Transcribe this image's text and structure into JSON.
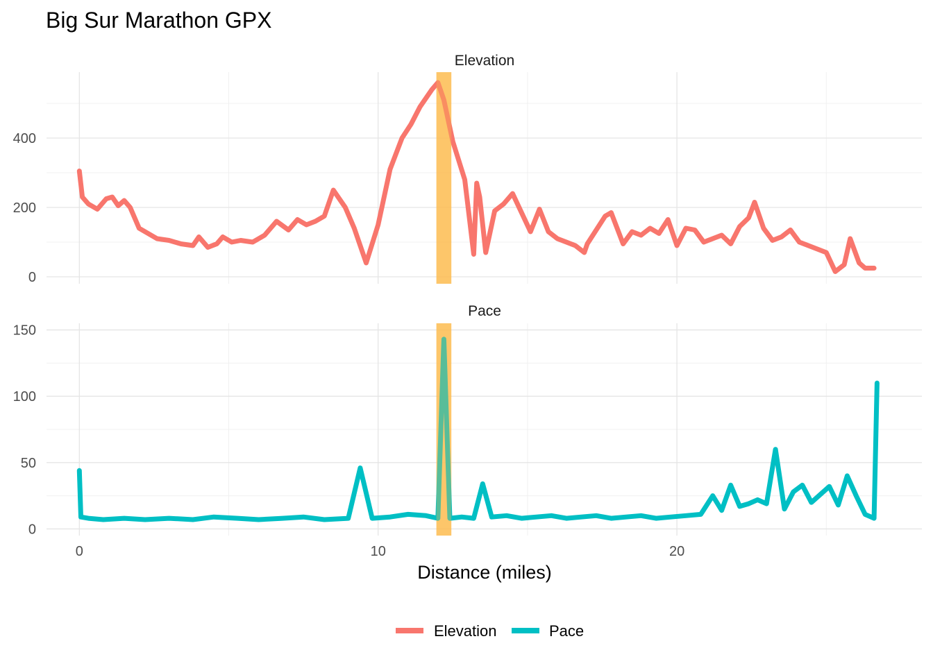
{
  "chart_data": {
    "type": "line",
    "title": "Big Sur Marathon GPX",
    "xlabel": "Distance (miles)",
    "ylabel": "",
    "xlim": [
      -1.1,
      28.2
    ],
    "x_ticks": [
      0,
      10,
      20
    ],
    "grid": true,
    "legend_position": "bottom",
    "highlight_band": {
      "x_start": 11.95,
      "x_end": 12.45,
      "color": "#FDB94A"
    },
    "panels": [
      {
        "name": "Elevation",
        "ylim": [
          -20,
          590
        ],
        "y_ticks": [
          0,
          200,
          400
        ],
        "color": "#F8766D",
        "x": [
          0,
          0.1,
          0.3,
          0.6,
          0.9,
          1.1,
          1.3,
          1.5,
          1.7,
          2.0,
          2.3,
          2.6,
          3.0,
          3.4,
          3.8,
          4.0,
          4.3,
          4.6,
          4.8,
          5.1,
          5.4,
          5.8,
          6.2,
          6.6,
          7.0,
          7.3,
          7.6,
          7.9,
          8.2,
          8.5,
          8.9,
          9.2,
          9.6,
          10.0,
          10.4,
          10.8,
          11.1,
          11.4,
          11.8,
          12.0,
          12.2,
          12.5,
          12.9,
          13.2,
          13.3,
          13.4,
          13.6,
          13.8,
          13.9,
          14.2,
          14.5,
          14.8,
          15.1,
          15.4,
          15.7,
          16.0,
          16.3,
          16.6,
          16.9,
          17.0,
          17.3,
          17.6,
          17.8,
          18.0,
          18.2,
          18.5,
          18.8,
          19.1,
          19.4,
          19.7,
          20.0,
          20.3,
          20.6,
          20.9,
          21.2,
          21.5,
          21.8,
          22.1,
          22.4,
          22.6,
          22.9,
          23.2,
          23.5,
          23.8,
          24.1,
          24.4,
          24.7,
          25.0,
          25.3,
          25.6,
          25.8,
          26.1,
          26.3,
          26.6
        ],
        "y": [
          305,
          230,
          210,
          195,
          225,
          230,
          205,
          220,
          200,
          140,
          125,
          110,
          105,
          95,
          90,
          115,
          85,
          95,
          115,
          100,
          105,
          100,
          120,
          160,
          135,
          165,
          150,
          160,
          175,
          250,
          200,
          140,
          40,
          150,
          310,
          400,
          440,
          490,
          540,
          560,
          510,
          390,
          280,
          65,
          270,
          230,
          70,
          150,
          190,
          210,
          240,
          185,
          130,
          195,
          130,
          110,
          100,
          90,
          70,
          95,
          135,
          175,
          185,
          140,
          95,
          130,
          120,
          140,
          125,
          165,
          90,
          140,
          135,
          100,
          110,
          120,
          95,
          145,
          170,
          215,
          140,
          105,
          115,
          135,
          100,
          90,
          80,
          70,
          15,
          35,
          110,
          40,
          25,
          25
        ]
      },
      {
        "name": "Pace",
        "ylim": [
          -5,
          155
        ],
        "y_ticks": [
          0,
          50,
          100,
          150
        ],
        "color": "#00BFC4",
        "x": [
          0,
          0.05,
          0.3,
          0.8,
          1.5,
          2.2,
          3.0,
          3.8,
          4.5,
          5.3,
          6.0,
          6.8,
          7.5,
          8.2,
          9.0,
          9.4,
          9.8,
          10.4,
          11.0,
          11.6,
          12.0,
          12.2,
          12.4,
          12.8,
          13.2,
          13.5,
          13.8,
          14.3,
          14.8,
          15.3,
          15.8,
          16.3,
          16.8,
          17.3,
          17.8,
          18.3,
          18.8,
          19.3,
          19.8,
          20.3,
          20.8,
          21.2,
          21.5,
          21.8,
          22.1,
          22.4,
          22.7,
          23.0,
          23.3,
          23.6,
          23.9,
          24.2,
          24.5,
          24.8,
          25.1,
          25.4,
          25.7,
          26.0,
          26.3,
          26.6,
          26.7
        ],
        "y": [
          44,
          9,
          8,
          7,
          8,
          7,
          8,
          7,
          9,
          8,
          7,
          8,
          9,
          7,
          8,
          46,
          8,
          9,
          11,
          10,
          8,
          143,
          8,
          9,
          8,
          34,
          9,
          10,
          8,
          9,
          10,
          8,
          9,
          10,
          8,
          9,
          10,
          8,
          9,
          10,
          11,
          25,
          14,
          33,
          17,
          19,
          22,
          19,
          60,
          15,
          28,
          33,
          20,
          26,
          32,
          18,
          40,
          25,
          11,
          8,
          110
        ]
      }
    ]
  }
}
